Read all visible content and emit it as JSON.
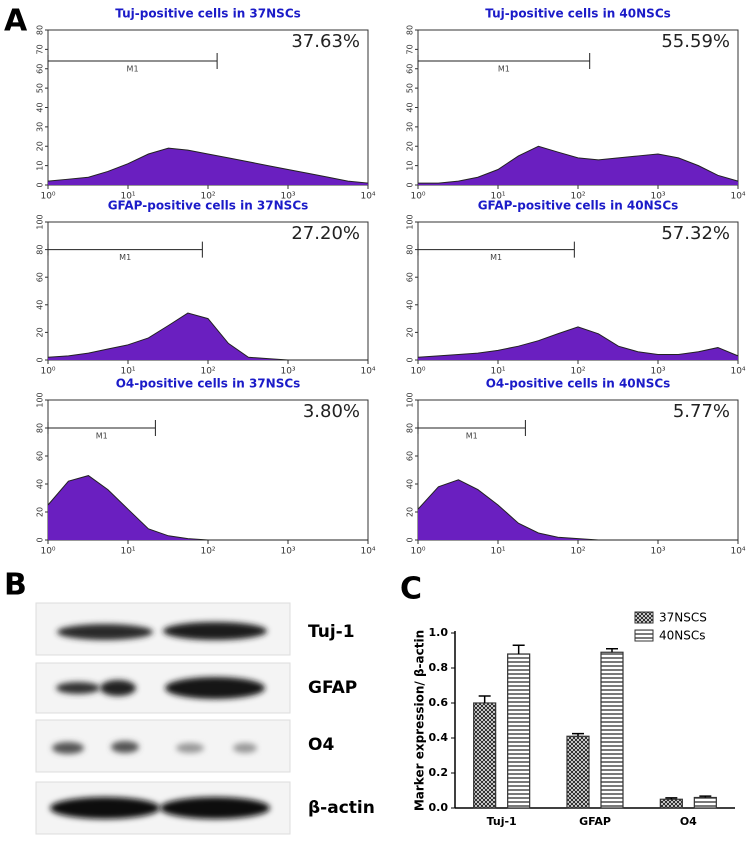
{
  "panels": [
    "A",
    "B",
    "C"
  ],
  "blot": {
    "labels": [
      "Tuj-1",
      "GFAP",
      "O4",
      "β-actin"
    ]
  },
  "chart_data": [
    {
      "type": "area",
      "title": "Tuj-positive cells in 37NSCs",
      "annotation": "37.63%",
      "color": "#6a1fc0",
      "xscale": "log",
      "marker": {
        "label": "M1",
        "range": [
          1,
          130
        ]
      },
      "x": [
        1,
        1.8,
        3.2,
        5.6,
        10,
        18,
        32,
        56,
        100,
        180,
        320,
        560,
        1000,
        1800,
        3200,
        5600,
        10000
      ],
      "values": [
        2,
        3,
        4,
        7,
        11,
        16,
        19,
        18,
        16,
        14,
        12,
        10,
        8,
        6,
        4,
        2,
        1
      ],
      "xlim": [
        1,
        10000
      ],
      "xticks": [
        {
          "value": 1,
          "label": "10⁰"
        },
        {
          "value": 10,
          "label": "10¹"
        },
        {
          "value": 100,
          "label": "10²"
        },
        {
          "value": 1000,
          "label": "10³"
        },
        {
          "value": 10000,
          "label": "10⁴"
        }
      ],
      "ylim": [
        0,
        80
      ],
      "yticks": [
        0,
        10,
        20,
        30,
        40,
        50,
        60,
        70,
        80
      ]
    },
    {
      "type": "area",
      "title": "Tuj-positive cells in 40NSCs",
      "annotation": "55.59%",
      "color": "#6a1fc0",
      "xscale": "log",
      "marker": {
        "label": "M1",
        "range": [
          1,
          140
        ]
      },
      "x": [
        1,
        1.8,
        3.2,
        5.6,
        10,
        18,
        32,
        56,
        100,
        180,
        320,
        560,
        1000,
        1800,
        3200,
        5600,
        10000
      ],
      "values": [
        1,
        1,
        2,
        4,
        8,
        15,
        20,
        17,
        14,
        13,
        14,
        15,
        16,
        14,
        10,
        5,
        2
      ],
      "xlim": [
        1,
        10000
      ],
      "xticks": [
        {
          "value": 1,
          "label": "10⁰"
        },
        {
          "value": 10,
          "label": "10¹"
        },
        {
          "value": 100,
          "label": "10²"
        },
        {
          "value": 1000,
          "label": "10³"
        },
        {
          "value": 10000,
          "label": "10⁴"
        }
      ],
      "ylim": [
        0,
        80
      ],
      "yticks": [
        0,
        10,
        20,
        30,
        40,
        50,
        60,
        70,
        80
      ]
    },
    {
      "type": "area",
      "title": "GFAP-positive cells in 37NSCs",
      "annotation": "27.20%",
      "color": "#6a1fc0",
      "xscale": "log",
      "marker": {
        "label": "M1",
        "range": [
          1,
          85
        ]
      },
      "x": [
        1,
        1.8,
        3.2,
        5.6,
        10,
        18,
        32,
        56,
        100,
        180,
        320,
        560,
        1000,
        1800,
        3200,
        5600,
        10000
      ],
      "values": [
        2,
        3,
        5,
        8,
        11,
        16,
        25,
        34,
        30,
        12,
        2,
        1,
        0,
        0,
        0,
        0,
        0
      ],
      "xlim": [
        1,
        10000
      ],
      "xticks": [
        {
          "value": 1,
          "label": "10⁰"
        },
        {
          "value": 10,
          "label": "10¹"
        },
        {
          "value": 100,
          "label": "10²"
        },
        {
          "value": 1000,
          "label": "10³"
        },
        {
          "value": 10000,
          "label": "10⁴"
        }
      ],
      "ylim": [
        0,
        100
      ],
      "yticks": [
        0,
        20,
        40,
        60,
        80,
        100
      ]
    },
    {
      "type": "area",
      "title": "GFAP-positive cells in 40NSCs",
      "annotation": "57.32%",
      "color": "#6a1fc0",
      "xscale": "log",
      "marker": {
        "label": "M1",
        "range": [
          1,
          90
        ]
      },
      "x": [
        1,
        1.8,
        3.2,
        5.6,
        10,
        18,
        32,
        56,
        100,
        180,
        320,
        560,
        1000,
        1800,
        3200,
        5600,
        10000
      ],
      "values": [
        2,
        3,
        4,
        5,
        7,
        10,
        14,
        19,
        24,
        19,
        10,
        6,
        4,
        4,
        6,
        9,
        3
      ],
      "xlim": [
        1,
        10000
      ],
      "xticks": [
        {
          "value": 1,
          "label": "10⁰"
        },
        {
          "value": 10,
          "label": "10¹"
        },
        {
          "value": 100,
          "label": "10²"
        },
        {
          "value": 1000,
          "label": "10³"
        },
        {
          "value": 10000,
          "label": "10⁴"
        }
      ],
      "ylim": [
        0,
        100
      ],
      "yticks": [
        0,
        20,
        40,
        60,
        80,
        100
      ]
    },
    {
      "type": "area",
      "title": "O4-positive cells in 37NSCs",
      "annotation": "3.80%",
      "color": "#6a1fc0",
      "xscale": "log",
      "marker": {
        "label": "M1",
        "range": [
          1,
          22
        ]
      },
      "x": [
        1,
        1.8,
        3.2,
        5.6,
        10,
        18,
        32,
        56,
        100,
        180,
        320,
        560,
        1000,
        1800,
        3200,
        5600,
        10000
      ],
      "values": [
        25,
        42,
        46,
        36,
        22,
        8,
        3,
        1,
        0,
        0,
        0,
        0,
        0,
        0,
        0,
        0,
        0
      ],
      "xlim": [
        1,
        10000
      ],
      "xticks": [
        {
          "value": 1,
          "label": "10⁰"
        },
        {
          "value": 10,
          "label": "10¹"
        },
        {
          "value": 100,
          "label": "10²"
        },
        {
          "value": 1000,
          "label": "10³"
        },
        {
          "value": 10000,
          "label": "10⁴"
        }
      ],
      "ylim": [
        0,
        100
      ],
      "yticks": [
        0,
        20,
        40,
        60,
        80,
        100
      ]
    },
    {
      "type": "area",
      "title": "O4-positive cells in 40NSCs",
      "annotation": "5.77%",
      "color": "#6a1fc0",
      "xscale": "log",
      "marker": {
        "label": "M1",
        "range": [
          1,
          22
        ]
      },
      "x": [
        1,
        1.8,
        3.2,
        5.6,
        10,
        18,
        32,
        56,
        100,
        180,
        320,
        560,
        1000,
        1800,
        3200,
        5600,
        10000
      ],
      "values": [
        22,
        38,
        43,
        36,
        25,
        12,
        5,
        2,
        1,
        0,
        0,
        0,
        0,
        0,
        0,
        0,
        0
      ],
      "xlim": [
        1,
        10000
      ],
      "xticks": [
        {
          "value": 1,
          "label": "10⁰"
        },
        {
          "value": 10,
          "label": "10¹"
        },
        {
          "value": 100,
          "label": "10²"
        },
        {
          "value": 1000,
          "label": "10³"
        },
        {
          "value": 10000,
          "label": "10⁴"
        }
      ],
      "ylim": [
        0,
        100
      ],
      "yticks": [
        0,
        20,
        40,
        60,
        80,
        100
      ]
    },
    {
      "type": "bar",
      "y_label": "Marker expression/ β-actin",
      "categories": [
        "Tuj-1",
        "GFAP",
        "O4"
      ],
      "series": [
        {
          "name": "37NSCS",
          "color": "#333333",
          "pattern": "crosshatch",
          "values": [
            0.6,
            0.41,
            0.05
          ],
          "errors": [
            0.04,
            0.015,
            0.008
          ]
        },
        {
          "name": "40NSCs",
          "color": "#333333",
          "pattern": "horizontal",
          "values": [
            0.88,
            0.89,
            0.06
          ],
          "errors": [
            0.05,
            0.02,
            0.008
          ]
        }
      ],
      "ylim": [
        0,
        1
      ],
      "yticks": [
        {
          "value": 0,
          "label": "0.0"
        },
        0.2,
        0.4,
        0.6,
        0.8,
        {
          "value": 1,
          "label": "1.0"
        }
      ],
      "legend": "upper right"
    }
  ]
}
